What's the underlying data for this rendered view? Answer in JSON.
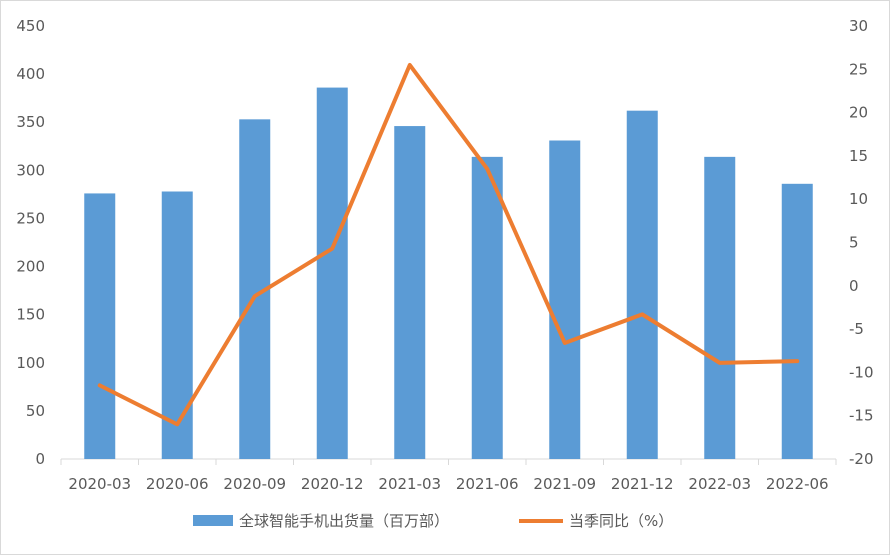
{
  "chart_data": {
    "type": "bar",
    "categories": [
      "2020-03",
      "2020-06",
      "2020-09",
      "2020-12",
      "2021-03",
      "2021-06",
      "2021-09",
      "2021-12",
      "2022-03",
      "2022-06"
    ],
    "series": [
      {
        "name": "全球智能手机出货量（百万部）",
        "type": "bar",
        "axis": "left",
        "color": "#5b9bd5",
        "values": [
          276,
          278,
          353,
          386,
          346,
          314,
          331,
          362,
          314,
          286
        ]
      },
      {
        "name": "当季同比（%）",
        "type": "line",
        "axis": "right",
        "color": "#ed7d31",
        "values": [
          -11.5,
          -16,
          -1.2,
          4.3,
          25.5,
          13.5,
          -6.6,
          -3.3,
          -8.9,
          -8.7
        ]
      }
    ],
    "y_left": {
      "min": 0,
      "max": 450,
      "step": 50,
      "ticks": [
        "0",
        "50",
        "100",
        "150",
        "200",
        "250",
        "300",
        "350",
        "400",
        "450"
      ]
    },
    "y_right": {
      "min": -20,
      "max": 30,
      "step": 5,
      "ticks": [
        "-20",
        "-15",
        "-10",
        "-5",
        "0",
        "5",
        "10",
        "15",
        "20",
        "25",
        "30"
      ]
    },
    "grid": false,
    "legend_position": "bottom"
  }
}
